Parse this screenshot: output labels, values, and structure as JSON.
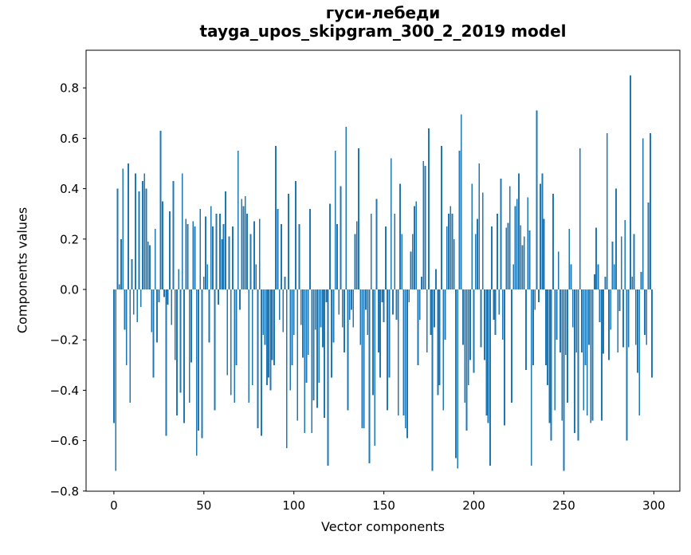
{
  "chart_data": {
    "type": "bar",
    "title": "гуси-лебеди",
    "subtitle": "tayga_upos_skipgram_300_2_2019 model",
    "xlabel": "Vector components",
    "ylabel": "Components values",
    "bar_color": "#1f77b4",
    "axis_color": "#000000",
    "n_components": 300,
    "xlim": [
      -15.45,
      314.45
    ],
    "ylim": [
      -0.8006,
      0.9494
    ],
    "xticks": [
      0,
      50,
      100,
      150,
      200,
      250,
      300
    ],
    "xtick_labels": [
      "0",
      "50",
      "100",
      "150",
      "200",
      "250",
      "300"
    ],
    "yticks": [
      -0.8,
      -0.6,
      -0.4,
      -0.2,
      0.0,
      0.2,
      0.4,
      0.6,
      0.8
    ],
    "ytick_labels": [
      "−0.8",
      "−0.6",
      "−0.4",
      "−0.2",
      "0.0",
      "0.2",
      "0.4",
      "0.6",
      "0.8"
    ],
    "grid": false,
    "legend": null,
    "bar_width_fraction": 0.8,
    "values": [
      -0.53,
      -0.72,
      0.4,
      0.02,
      0.2,
      0.48,
      -0.16,
      -0.3,
      0.5,
      -0.45,
      0.12,
      -0.1,
      0.46,
      -0.13,
      0.39,
      -0.07,
      0.43,
      0.46,
      0.4,
      0.19,
      0.175,
      -0.17,
      -0.35,
      0.24,
      -0.21,
      -0.05,
      0.63,
      0.35,
      -0.03,
      -0.58,
      -0.06,
      0.31,
      -0.14,
      0.43,
      -0.28,
      -0.5,
      0.08,
      -0.41,
      0.46,
      -0.53,
      0.28,
      0.26,
      -0.45,
      -0.29,
      0.27,
      0.25,
      -0.66,
      -0.56,
      0.32,
      -0.59,
      0.05,
      0.29,
      0.1,
      -0.21,
      0.33,
      0.25,
      -0.48,
      0.3,
      -0.06,
      0.3,
      0.2,
      0.26,
      0.39,
      -0.34,
      0.21,
      -0.42,
      0.25,
      -0.45,
      -0.3,
      0.55,
      -0.08,
      0.36,
      0.33,
      0.37,
      0.3,
      -0.45,
      0.22,
      -0.38,
      0.27,
      0.1,
      -0.55,
      0.28,
      -0.58,
      -0.18,
      -0.22,
      -0.38,
      -0.35,
      -0.4,
      -0.28,
      -0.3,
      0.57,
      0.32,
      -0.12,
      0.26,
      -0.17,
      0.05,
      -0.63,
      0.38,
      -0.4,
      -0.3,
      -0.18,
      0.43,
      -0.52,
      0.26,
      -0.14,
      -0.27,
      -0.57,
      -0.37,
      -0.26,
      0.32,
      -0.57,
      -0.44,
      -0.16,
      -0.47,
      -0.37,
      -0.15,
      -0.23,
      -0.51,
      -0.05,
      -0.7,
      0.34,
      -0.35,
      -0.21,
      0.55,
      0.26,
      -0.1,
      0.41,
      -0.15,
      -0.25,
      0.645,
      -0.48,
      -0.12,
      -0.08,
      -0.15,
      0.22,
      0.27,
      0.56,
      -0.22,
      -0.55,
      -0.55,
      -0.08,
      -0.18,
      -0.69,
      0.3,
      -0.42,
      -0.62,
      0.36,
      -0.25,
      -0.35,
      -0.05,
      -0.13,
      0.25,
      -0.48,
      -0.35,
      0.52,
      -0.1,
      0.3,
      -0.12,
      -0.5,
      0.42,
      0.22,
      -0.5,
      -0.55,
      -0.59,
      -0.05,
      0.15,
      0.22,
      0.33,
      0.35,
      -0.3,
      -0.12,
      0.05,
      0.51,
      0.49,
      -0.25,
      0.64,
      -0.18,
      -0.72,
      -0.15,
      0.08,
      -0.42,
      -0.38,
      0.57,
      -0.48,
      -0.2,
      0.25,
      0.3,
      0.33,
      0.3,
      0.2,
      -0.67,
      -0.71,
      0.55,
      0.695,
      -0.22,
      -0.45,
      -0.56,
      -0.38,
      -0.28,
      0.42,
      -0.33,
      0.22,
      0.28,
      0.5,
      -0.23,
      0.385,
      -0.28,
      -0.5,
      -0.53,
      -0.7,
      0.25,
      -0.12,
      -0.18,
      0.3,
      -0.1,
      0.44,
      -0.2,
      -0.54,
      0.245,
      0.265,
      0.41,
      -0.45,
      0.1,
      0.33,
      0.36,
      0.46,
      0.255,
      0.175,
      0.21,
      -0.32,
      0.365,
      0.235,
      -0.7,
      -0.3,
      -0.08,
      0.71,
      -0.05,
      0.42,
      0.46,
      0.28,
      -0.3,
      -0.38,
      -0.53,
      -0.6,
      0.38,
      -0.48,
      -0.2,
      0.15,
      -0.25,
      -0.52,
      -0.72,
      -0.26,
      -0.45,
      0.24,
      0.1,
      -0.15,
      -0.57,
      -0.25,
      -0.6,
      0.56,
      -0.25,
      -0.48,
      -0.3,
      -0.5,
      -0.22,
      -0.53,
      -0.52,
      0.06,
      0.245,
      0.1,
      -0.13,
      -0.52,
      -0.255,
      0.05,
      0.62,
      -0.28,
      -0.16,
      0.19,
      0.1,
      0.4,
      -0.25,
      -0.085,
      0.21,
      -0.23,
      0.275,
      -0.6,
      -0.23,
      0.85,
      0.05,
      0.22,
      -0.22,
      -0.33,
      -0.5,
      0.07,
      0.6,
      -0.18,
      -0.22,
      0.345,
      0.62,
      -0.35
    ]
  }
}
